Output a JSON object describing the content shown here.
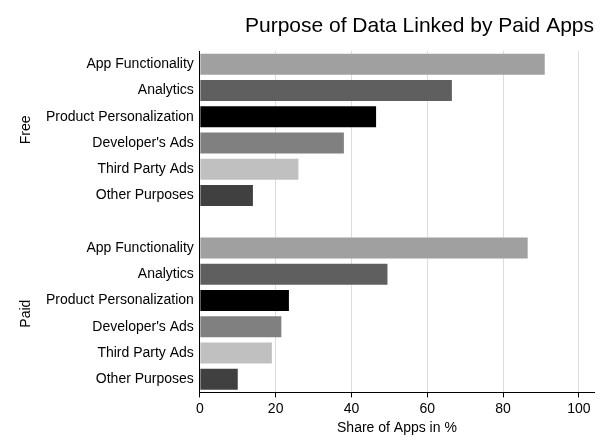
{
  "chart_data": {
    "type": "bar",
    "orientation": "horizontal",
    "title": "Purpose of Data Linked by Paid Apps",
    "x_label": "Share of Apps in %",
    "categories": [
      "App Functionality",
      "Analytics",
      "Product Personalization",
      "Developer's Ads",
      "Third Party Ads",
      "Other Purposes"
    ],
    "colors": [
      "#a0a0a0",
      "#5f5f5f",
      "#000000",
      "#808080",
      "#c0c0c0",
      "#404040"
    ],
    "series": [
      {
        "name": "Free",
        "values": [
          91,
          66.5,
          46.5,
          38,
          26,
          14
        ]
      },
      {
        "name": "Paid",
        "values": [
          86.5,
          49.5,
          23.5,
          21.5,
          19,
          10
        ]
      }
    ],
    "xlim": [
      0,
      104
    ],
    "xticks": [
      0,
      20,
      40,
      60,
      80,
      100
    ],
    "grid": true
  }
}
